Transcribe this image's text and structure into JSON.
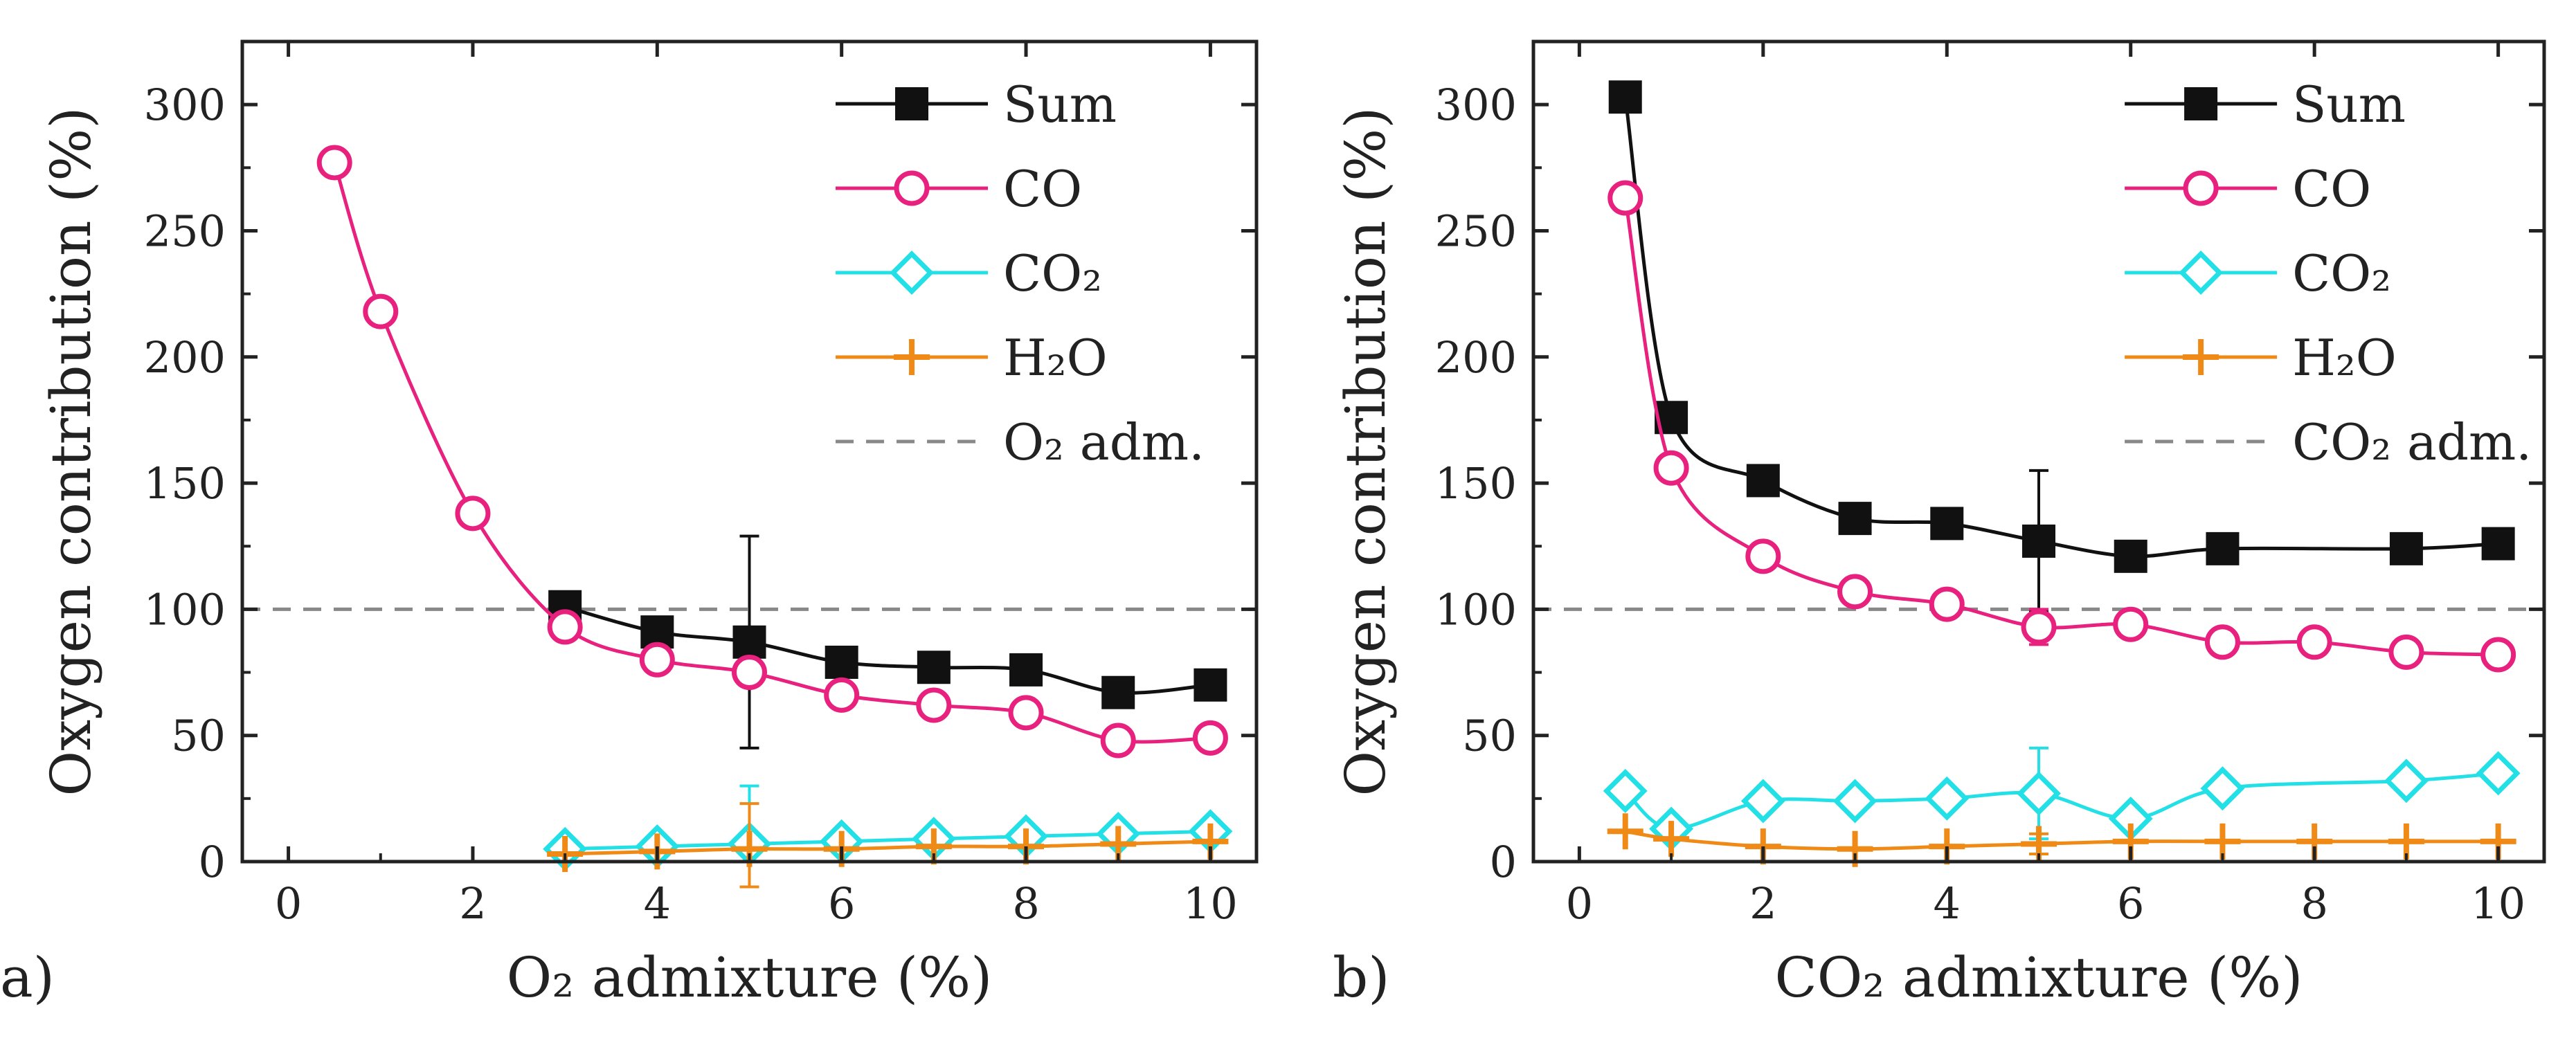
{
  "colors": {
    "sum": "#111111",
    "co": "#e8207e",
    "co2": "#22e0e6",
    "h2o": "#ef8a17",
    "reference": "#888888",
    "axis": "#222222"
  },
  "chart_data": [
    {
      "type": "line",
      "panel_label": "a)",
      "xlabel": "O₂ admixture (%)",
      "ylabel": "Oxygen contribution (%)",
      "xlim": [
        -0.5,
        10.5
      ],
      "ylim": [
        0,
        325
      ],
      "xticks": [
        0,
        2,
        4,
        6,
        8,
        10
      ],
      "xtick_labels": [
        "0",
        "2",
        "4",
        "6",
        "8",
        "10"
      ],
      "yticks": [
        0,
        50,
        100,
        150,
        200,
        250,
        300
      ],
      "ytick_labels": [
        "0",
        "50",
        "100",
        "150",
        "200",
        "250",
        "300"
      ],
      "grid": false,
      "legend_position": "top-right",
      "series": [
        {
          "key": "sum",
          "name": "Sum",
          "marker": "filled-square",
          "x": [
            3,
            4,
            5,
            6,
            7,
            8,
            9,
            10
          ],
          "values": [
            101,
            91,
            87,
            79,
            77,
            76,
            67,
            70
          ],
          "error": [
            null,
            null,
            42,
            null,
            null,
            null,
            null,
            null
          ]
        },
        {
          "key": "co",
          "name": "CO",
          "marker": "open-circle",
          "x": [
            0.5,
            1,
            2,
            3,
            4,
            5,
            6,
            7,
            8,
            9,
            10
          ],
          "values": [
            277,
            218,
            138,
            93,
            80,
            75,
            66,
            62,
            59,
            48,
            49
          ],
          "error": [
            null,
            null,
            null,
            null,
            null,
            null,
            null,
            null,
            null,
            null,
            null
          ]
        },
        {
          "key": "co2",
          "name": "CO₂",
          "marker": "open-diamond",
          "x": [
            3,
            4,
            5,
            6,
            7,
            8,
            9,
            10
          ],
          "values": [
            5,
            6,
            7,
            8,
            9,
            10,
            11,
            12
          ],
          "error": [
            null,
            null,
            23,
            null,
            null,
            null,
            null,
            null
          ]
        },
        {
          "key": "h2o",
          "name": "H₂O",
          "marker": "plus",
          "x": [
            3,
            4,
            5,
            6,
            7,
            8,
            9,
            10
          ],
          "values": [
            3,
            4,
            5,
            5,
            6,
            6,
            7,
            8
          ],
          "error": [
            null,
            null,
            18,
            null,
            null,
            null,
            null,
            null
          ]
        }
      ],
      "reference_line": {
        "name": "O₂ adm.",
        "y": 100
      }
    },
    {
      "type": "line",
      "panel_label": "b)",
      "xlabel": "CO₂ admixture (%)",
      "ylabel": "Oxygen contribution (%)",
      "xlim": [
        -0.5,
        10.5
      ],
      "ylim": [
        0,
        325
      ],
      "xticks": [
        0,
        2,
        4,
        6,
        8,
        10
      ],
      "xtick_labels": [
        "0",
        "2",
        "4",
        "6",
        "8",
        "10"
      ],
      "yticks": [
        0,
        50,
        100,
        150,
        200,
        250,
        300
      ],
      "ytick_labels": [
        "0",
        "50",
        "100",
        "150",
        "200",
        "250",
        "300"
      ],
      "grid": false,
      "legend_position": "top-right",
      "series": [
        {
          "key": "sum",
          "name": "Sum",
          "marker": "filled-square",
          "x": [
            0.5,
            1,
            2,
            3,
            4,
            5,
            6,
            7,
            9,
            10
          ],
          "values": [
            303,
            176,
            151,
            136,
            134,
            127,
            121,
            124,
            124,
            126
          ],
          "error": [
            null,
            null,
            null,
            null,
            null,
            28,
            null,
            null,
            null,
            null
          ]
        },
        {
          "key": "co",
          "name": "CO",
          "marker": "open-circle",
          "x": [
            0.5,
            1,
            2,
            3,
            4,
            5,
            6,
            7,
            8,
            9,
            10
          ],
          "values": [
            263,
            156,
            121,
            107,
            102,
            93,
            94,
            87,
            87,
            83,
            82
          ],
          "error": [
            null,
            null,
            null,
            null,
            null,
            7,
            null,
            null,
            null,
            null,
            null
          ]
        },
        {
          "key": "co2",
          "name": "CO₂",
          "marker": "open-diamond",
          "x": [
            0.5,
            1,
            2,
            3,
            4,
            5,
            6,
            7,
            9,
            10
          ],
          "values": [
            28,
            13,
            24,
            24,
            25,
            27,
            17,
            29,
            32,
            35
          ],
          "error": [
            null,
            null,
            null,
            null,
            null,
            18,
            null,
            null,
            null,
            null
          ]
        },
        {
          "key": "h2o",
          "name": "H₂O",
          "marker": "plus",
          "x": [
            0.5,
            1,
            2,
            3,
            4,
            5,
            6,
            7,
            8,
            9,
            10
          ],
          "values": [
            12,
            9,
            6,
            5,
            6,
            7,
            8,
            8,
            8,
            8,
            8
          ],
          "error": [
            null,
            null,
            null,
            null,
            null,
            4,
            null,
            null,
            null,
            null,
            null
          ]
        }
      ],
      "reference_line": {
        "name": "CO₂ adm.",
        "y": 100
      }
    }
  ]
}
